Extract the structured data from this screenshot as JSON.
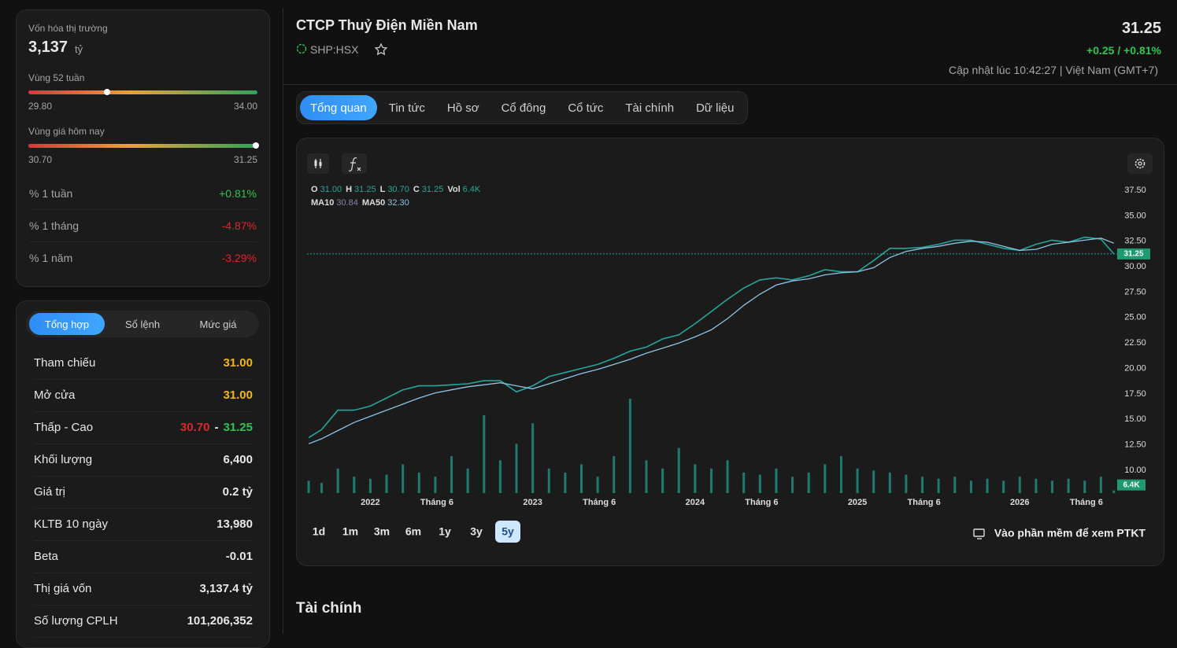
{
  "market_cap": {
    "label": "Vốn hóa thị trường",
    "value": "3,137",
    "unit": "tỷ"
  },
  "range_52w": {
    "label": "Vùng 52 tuần",
    "low": "29.80",
    "high": "34.00"
  },
  "range_today": {
    "label": "Vùng giá hôm nay",
    "low": "30.70",
    "high": "31.25"
  },
  "performance": [
    {
      "label": "% 1 tuần",
      "value": "+0.81%",
      "trend": "up"
    },
    {
      "label": "% 1 tháng",
      "value": "-4.87%",
      "trend": "down"
    },
    {
      "label": "% 1 năm",
      "value": "-3.29%",
      "trend": "down"
    }
  ],
  "summary_tabs": [
    "Tổng hợp",
    "Sổ lệnh",
    "Mức giá"
  ],
  "summary_rows": [
    {
      "label": "Tham chiếu",
      "value": "31.00",
      "tone": "ref"
    },
    {
      "label": "Mở cửa",
      "value": "31.00",
      "tone": "ref"
    },
    {
      "label": "Thấp - Cao",
      "low": "30.70",
      "sep": "-",
      "high": "31.25"
    },
    {
      "label": "Khối lượng",
      "value": "6,400"
    },
    {
      "label": "Giá trị",
      "value": "0.2 tỷ"
    },
    {
      "label": "KLTB 10 ngày",
      "value": "13,980"
    },
    {
      "label": "Beta",
      "value": "-0.01"
    },
    {
      "label": "Thị giá vốn",
      "value": "3,137.4 tỷ"
    },
    {
      "label": "Số lượng CPLH",
      "value": "101,206,352"
    }
  ],
  "header": {
    "title": "CTCP Thuỷ Điện Miền Nam",
    "ticker": "SHP:HSX",
    "price": "31.25",
    "change": "+0.25 / +0.81%",
    "updated": "Cập nhật lúc 10:42:27 | Việt Nam (GMT+7)"
  },
  "nav_tabs": [
    "Tổng quan",
    "Tin tức",
    "Hồ sơ",
    "Cổ đông",
    "Cổ tức",
    "Tài chính",
    "Dữ liệu"
  ],
  "timeframes": [
    "1d",
    "1m",
    "3m",
    "6m",
    "1y",
    "3y",
    "5y"
  ],
  "pt_link": "Vào phần mềm để xem PTKT",
  "section_title": "Tài chính",
  "chart_data": {
    "type": "line",
    "legend": [
      [
        {
          "k": "O",
          "v": "31.00"
        },
        {
          "k": "H",
          "v": "31.25"
        },
        {
          "k": "L",
          "v": "30.70"
        },
        {
          "k": "C",
          "v": "31.25"
        },
        {
          "k": "Vol",
          "v": "6.4K"
        }
      ],
      [
        {
          "k": "MA10",
          "v": "30.84"
        },
        {
          "k": "MA50",
          "v": "32.30"
        }
      ]
    ],
    "x": [
      2021.62,
      2021.7,
      2021.8,
      2021.9,
      2022.0,
      2022.1,
      2022.2,
      2022.3,
      2022.4,
      2022.5,
      2022.6,
      2022.7,
      2022.8,
      2022.9,
      2023.0,
      2023.1,
      2023.2,
      2023.3,
      2023.4,
      2023.5,
      2023.6,
      2023.7,
      2023.8,
      2023.9,
      2024.0,
      2024.1,
      2024.2,
      2024.3,
      2024.4,
      2024.5,
      2024.6,
      2024.7,
      2024.8,
      2024.9,
      2025.0,
      2025.1,
      2025.2,
      2025.3,
      2025.4,
      2025.5,
      2025.6,
      2025.7,
      2025.8,
      2025.9,
      2026.0,
      2026.1,
      2026.2,
      2026.3,
      2026.4,
      2026.5,
      2026.58
    ],
    "series": [
      {
        "color": "#26a69a",
        "values": [
          13.2,
          14.0,
          15.9,
          15.9,
          16.3,
          17.1,
          17.9,
          18.3,
          18.3,
          18.4,
          18.5,
          18.8,
          18.8,
          17.7,
          18.3,
          19.2,
          19.6,
          20.0,
          20.4,
          21.0,
          21.7,
          22.1,
          22.9,
          23.3,
          24.4,
          25.6,
          26.8,
          27.9,
          28.7,
          28.9,
          28.7,
          29.1,
          29.7,
          29.5,
          29.5,
          30.6,
          31.8,
          31.8,
          31.9,
          32.2,
          32.6,
          32.6,
          32.2,
          31.8,
          31.6,
          32.2,
          32.6,
          32.4,
          32.9,
          32.7,
          31.25
        ]
      },
      {
        "name": "MA50",
        "color": "#8fc3e6",
        "values": [
          12.6,
          13.1,
          13.9,
          14.7,
          15.3,
          15.9,
          16.5,
          17.1,
          17.6,
          17.9,
          18.2,
          18.4,
          18.6,
          18.3,
          18.0,
          18.5,
          19.0,
          19.5,
          19.9,
          20.4,
          20.9,
          21.5,
          22.0,
          22.5,
          23.1,
          23.8,
          24.9,
          26.2,
          27.3,
          28.2,
          28.6,
          28.8,
          29.2,
          29.4,
          29.5,
          29.9,
          30.9,
          31.5,
          31.8,
          32.0,
          32.3,
          32.5,
          32.4,
          32.0,
          31.6,
          31.7,
          32.2,
          32.4,
          32.6,
          32.8,
          32.3
        ]
      }
    ],
    "volume": {
      "color": "#1f7a72",
      "values": [
        30000,
        25000,
        60000,
        40000,
        35000,
        45000,
        70000,
        50000,
        40000,
        90000,
        60000,
        190000,
        80000,
        120000,
        170000,
        60000,
        50000,
        70000,
        40000,
        90000,
        230000,
        80000,
        60000,
        110000,
        70000,
        60000,
        80000,
        50000,
        45000,
        60000,
        40000,
        50000,
        70000,
        90000,
        60000,
        55000,
        50000,
        45000,
        40000,
        35000,
        40000,
        30000,
        35000,
        30000,
        40000,
        35000,
        30000,
        35000,
        30000,
        40000,
        6400
      ]
    },
    "last_volume": {
      "value": 6400,
      "label": "6.4K"
    },
    "last_price": 31.25,
    "xlim": [
      2021.61,
      2026.6
    ],
    "xticks": [
      2022,
      {
        "value": 2022.41,
        "label": "Tháng 6"
      },
      2023,
      {
        "value": 2023.41,
        "label": "Tháng 6"
      },
      2024,
      {
        "value": 2024.41,
        "label": "Tháng 6"
      },
      2025,
      {
        "value": 2025.41,
        "label": "Tháng 6"
      },
      2026,
      {
        "value": 2026.41,
        "label": "Tháng 6"
      }
    ],
    "ylim": [
      7.76,
      38.35
    ],
    "yticks": [
      {
        "value": 10,
        "label": "10.00"
      },
      {
        "value": 12.5,
        "label": "12.50"
      },
      {
        "value": 15,
        "label": "15.00"
      },
      {
        "value": 17.5,
        "label": "17.50"
      },
      {
        "value": 20,
        "label": "20.00"
      },
      {
        "value": 22.5,
        "label": "22.50"
      },
      {
        "value": 25,
        "label": "25.00"
      },
      {
        "value": 27.5,
        "label": "27.50"
      },
      {
        "value": 30,
        "label": "30.00"
      },
      {
        "value": 32.5,
        "label": "32.50"
      },
      {
        "value": 35,
        "label": "35.00"
      },
      {
        "value": 37.5,
        "label": "37.50"
      }
    ]
  }
}
